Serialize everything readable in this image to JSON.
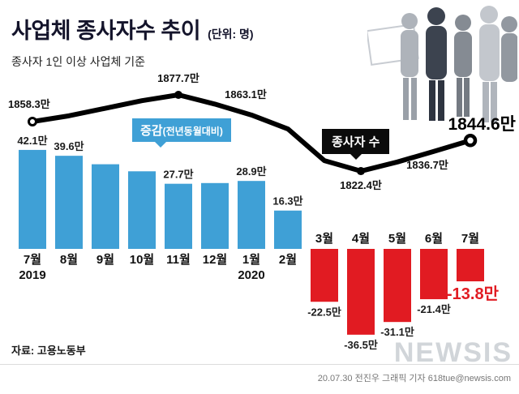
{
  "header": {
    "title": "사업체 종사자수 추이",
    "unit": "(단위: 명)",
    "subtitle": "종사자 1인 이상 사업체 기준"
  },
  "annotations": {
    "change_label": "증감",
    "change_label_sub": "(전년동월대비)",
    "workers_label": "종사자 수"
  },
  "footer": {
    "source": "자료: 고용노동부",
    "credit": "20.07.30 전진우 그래픽 기자 618tue@newsis.com",
    "watermark": "NEWSIS"
  },
  "colors": {
    "bar_positive": "#3fa0d6",
    "bar_negative": "#e11b22",
    "line": "#000000",
    "title": "#14142b",
    "highlight_negative": "#e11b22"
  },
  "chart_data": {
    "type": "combo bar+line",
    "categories": [
      "7월",
      "8월",
      "9월",
      "10월",
      "11월",
      "12월",
      "1월",
      "2월",
      "3월",
      "4월",
      "5월",
      "6월",
      "7월"
    ],
    "year_markers": [
      {
        "index": 0,
        "label": "2019"
      },
      {
        "index": 6,
        "label": "2020"
      }
    ],
    "series": [
      {
        "name": "증감(전년동월대비)",
        "type": "bar",
        "unit": "만",
        "values": [
          42.1,
          39.6,
          36.0,
          33.0,
          27.7,
          28.0,
          28.9,
          16.3,
          -22.5,
          -36.5,
          -31.1,
          -21.4,
          -13.8
        ],
        "labels": [
          "42.1만",
          "39.6만",
          "",
          "",
          "27.7만",
          "",
          "28.9만",
          "16.3만",
          "-22.5만",
          "-36.5만",
          "-31.1만",
          "-21.4만",
          "-13.8만"
        ]
      },
      {
        "name": "종사자 수",
        "type": "line",
        "unit": "만",
        "values": [
          1858.3,
          1862.5,
          1868.0,
          1873.5,
          1877.7,
          1871.0,
          1863.1,
          1853.0,
          1830.0,
          1822.4,
          1829.0,
          1836.7,
          1844.6
        ],
        "labels": [
          "1858.3만",
          "",
          "",
          "",
          "1877.7만",
          "",
          "1863.1만",
          "",
          "",
          "1822.4만",
          "",
          "1836.7만",
          "1844.6만"
        ]
      }
    ],
    "bar_axis": {
      "unit": "만",
      "zero_baseline": true,
      "approx_range": [
        -40,
        45
      ]
    },
    "line_axis": {
      "approx_range": [
        1820,
        1880
      ]
    },
    "legend_position": "inline callouts",
    "grid": false
  }
}
